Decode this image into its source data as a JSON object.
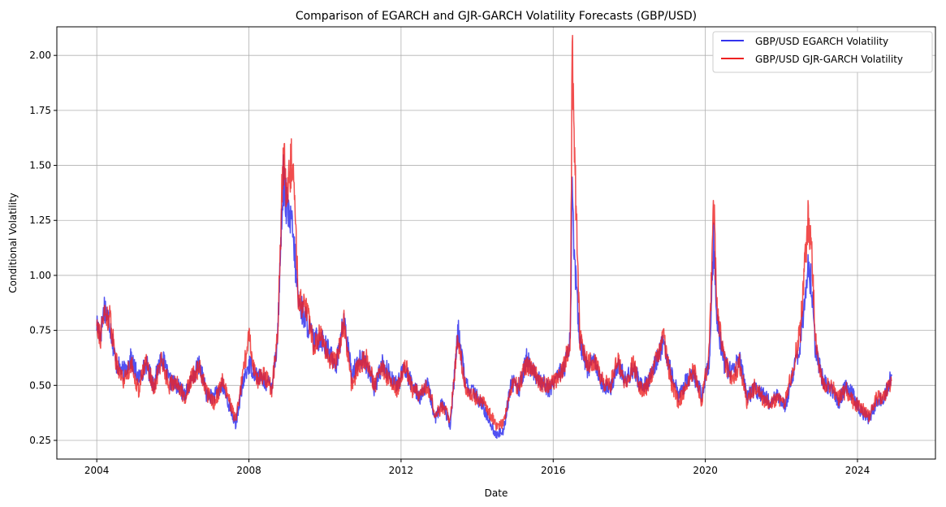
{
  "chart_data": {
    "type": "line",
    "title": "Comparison of EGARCH and GJR-GARCH Volatility Forecasts (GBP/USD)",
    "xlabel": "Date",
    "ylabel": "Conditional Volatility",
    "xlim": [
      2002.95,
      2026.05
    ],
    "ylim": [
      0.165,
      2.13
    ],
    "x_ticks": [
      2004,
      2008,
      2012,
      2016,
      2020,
      2024
    ],
    "y_ticks": [
      0.25,
      0.5,
      0.75,
      1.0,
      1.25,
      1.5,
      1.75,
      2.0
    ],
    "y_tick_labels": [
      "0.25",
      "0.50",
      "0.75",
      "1.00",
      "1.25",
      "1.50",
      "1.75",
      "2.00"
    ],
    "grid": true,
    "legend_position": "top-right",
    "colors": {
      "egarch": "#3333ee",
      "gjr": "#ee2222",
      "overlap": "#cc1155"
    },
    "series": [
      {
        "name": "GBP/USD EGARCH Volatility",
        "key": "egarch",
        "x": [
          2004.0,
          2004.1,
          2004.2,
          2004.35,
          2004.5,
          2004.7,
          2004.9,
          2005.1,
          2005.3,
          2005.5,
          2005.7,
          2005.9,
          2006.1,
          2006.3,
          2006.5,
          2006.7,
          2006.9,
          2007.1,
          2007.3,
          2007.5,
          2007.65,
          2007.8,
          2008.0,
          2008.2,
          2008.4,
          2008.6,
          2008.75,
          2008.9,
          2009.0,
          2009.15,
          2009.3,
          2009.5,
          2009.7,
          2009.9,
          2010.1,
          2010.3,
          2010.5,
          2010.7,
          2010.9,
          2011.1,
          2011.3,
          2011.5,
          2011.7,
          2011.9,
          2012.1,
          2012.3,
          2012.5,
          2012.7,
          2012.9,
          2013.1,
          2013.3,
          2013.5,
          2013.7,
          2013.9,
          2014.1,
          2014.3,
          2014.5,
          2014.7,
          2014.9,
          2015.1,
          2015.3,
          2015.5,
          2015.7,
          2015.9,
          2016.1,
          2016.3,
          2016.45,
          2016.5,
          2016.55,
          2016.7,
          2016.9,
          2017.1,
          2017.3,
          2017.5,
          2017.7,
          2017.9,
          2018.1,
          2018.3,
          2018.5,
          2018.7,
          2018.9,
          2019.1,
          2019.3,
          2019.5,
          2019.7,
          2019.9,
          2020.1,
          2020.22,
          2020.3,
          2020.5,
          2020.7,
          2020.9,
          2021.1,
          2021.3,
          2021.5,
          2021.7,
          2021.9,
          2022.1,
          2022.3,
          2022.5,
          2022.7,
          2022.8,
          2022.9,
          2023.1,
          2023.3,
          2023.5,
          2023.7,
          2023.9,
          2024.1,
          2024.3,
          2024.5,
          2024.7,
          2024.9
        ],
        "values": [
          0.78,
          0.73,
          0.86,
          0.78,
          0.6,
          0.56,
          0.62,
          0.53,
          0.6,
          0.5,
          0.64,
          0.52,
          0.5,
          0.46,
          0.52,
          0.6,
          0.45,
          0.45,
          0.5,
          0.4,
          0.32,
          0.48,
          0.6,
          0.55,
          0.52,
          0.5,
          0.7,
          1.45,
          1.3,
          1.2,
          0.88,
          0.8,
          0.7,
          0.72,
          0.65,
          0.6,
          0.8,
          0.55,
          0.62,
          0.6,
          0.48,
          0.6,
          0.55,
          0.5,
          0.58,
          0.5,
          0.45,
          0.5,
          0.35,
          0.42,
          0.32,
          0.75,
          0.5,
          0.47,
          0.42,
          0.35,
          0.27,
          0.3,
          0.52,
          0.48,
          0.62,
          0.55,
          0.52,
          0.48,
          0.55,
          0.58,
          0.7,
          1.42,
          1.1,
          0.7,
          0.58,
          0.62,
          0.5,
          0.48,
          0.6,
          0.52,
          0.58,
          0.5,
          0.52,
          0.6,
          0.7,
          0.55,
          0.45,
          0.52,
          0.55,
          0.45,
          0.6,
          1.15,
          0.8,
          0.6,
          0.55,
          0.62,
          0.45,
          0.48,
          0.46,
          0.42,
          0.45,
          0.4,
          0.55,
          0.7,
          1.05,
          0.95,
          0.65,
          0.52,
          0.48,
          0.42,
          0.5,
          0.45,
          0.38,
          0.35,
          0.42,
          0.45,
          0.55
        ]
      },
      {
        "name": "GBP/USD GJR-GARCH Volatility",
        "key": "gjr",
        "x": [
          2004.0,
          2004.1,
          2004.2,
          2004.35,
          2004.5,
          2004.7,
          2004.9,
          2005.1,
          2005.3,
          2005.5,
          2005.7,
          2005.9,
          2006.1,
          2006.3,
          2006.5,
          2006.7,
          2006.9,
          2007.1,
          2007.3,
          2007.5,
          2007.65,
          2007.8,
          2008.0,
          2008.2,
          2008.4,
          2008.6,
          2008.75,
          2008.9,
          2009.0,
          2009.15,
          2009.3,
          2009.5,
          2009.7,
          2009.9,
          2010.1,
          2010.3,
          2010.5,
          2010.7,
          2010.9,
          2011.1,
          2011.3,
          2011.5,
          2011.7,
          2011.9,
          2012.1,
          2012.3,
          2012.5,
          2012.7,
          2012.9,
          2013.1,
          2013.3,
          2013.5,
          2013.7,
          2013.9,
          2014.1,
          2014.3,
          2014.5,
          2014.7,
          2014.9,
          2015.1,
          2015.3,
          2015.5,
          2015.7,
          2015.9,
          2016.1,
          2016.3,
          2016.45,
          2016.5,
          2016.55,
          2016.7,
          2016.9,
          2017.1,
          2017.3,
          2017.5,
          2017.7,
          2017.9,
          2018.1,
          2018.3,
          2018.5,
          2018.7,
          2018.9,
          2019.1,
          2019.3,
          2019.5,
          2019.7,
          2019.9,
          2020.1,
          2020.22,
          2020.3,
          2020.5,
          2020.7,
          2020.9,
          2021.1,
          2021.3,
          2021.5,
          2021.7,
          2021.9,
          2022.1,
          2022.3,
          2022.5,
          2022.7,
          2022.8,
          2022.9,
          2023.1,
          2023.3,
          2023.5,
          2023.7,
          2023.9,
          2024.1,
          2024.3,
          2024.5,
          2024.7,
          2024.9
        ],
        "values": [
          0.8,
          0.72,
          0.83,
          0.8,
          0.62,
          0.52,
          0.6,
          0.48,
          0.62,
          0.48,
          0.62,
          0.5,
          0.52,
          0.44,
          0.54,
          0.58,
          0.46,
          0.42,
          0.52,
          0.42,
          0.34,
          0.5,
          0.72,
          0.52,
          0.55,
          0.48,
          0.72,
          1.56,
          1.35,
          1.55,
          0.9,
          0.85,
          0.68,
          0.75,
          0.6,
          0.62,
          0.78,
          0.5,
          0.6,
          0.62,
          0.5,
          0.58,
          0.52,
          0.48,
          0.6,
          0.48,
          0.46,
          0.5,
          0.37,
          0.4,
          0.35,
          0.72,
          0.48,
          0.45,
          0.44,
          0.38,
          0.32,
          0.33,
          0.5,
          0.5,
          0.6,
          0.56,
          0.5,
          0.5,
          0.52,
          0.6,
          0.7,
          2.04,
          1.6,
          0.72,
          0.6,
          0.6,
          0.52,
          0.5,
          0.62,
          0.5,
          0.6,
          0.48,
          0.5,
          0.62,
          0.72,
          0.52,
          0.42,
          0.5,
          0.58,
          0.42,
          0.65,
          1.33,
          0.85,
          0.62,
          0.52,
          0.6,
          0.42,
          0.5,
          0.44,
          0.42,
          0.44,
          0.42,
          0.58,
          0.75,
          1.25,
          1.1,
          0.7,
          0.5,
          0.5,
          0.44,
          0.48,
          0.42,
          0.4,
          0.36,
          0.44,
          0.45,
          0.52
        ]
      }
    ]
  }
}
